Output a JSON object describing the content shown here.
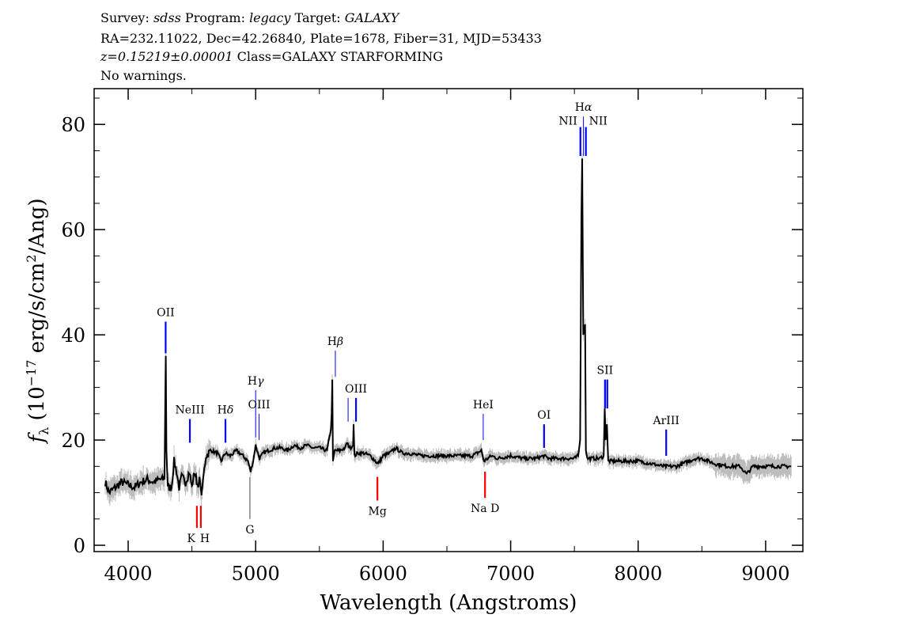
{
  "header": {
    "line1": {
      "survey_label": "Survey:",
      "survey": "sdss",
      "program_label": "Program:",
      "program": "legacy",
      "target_label": "Target:",
      "target": "GALAXY"
    },
    "line2": "RA=232.11022, Dec=42.26840, Plate=1678, Fiber=31, MJD=53433",
    "line3": {
      "redshift": "z=0.15219±0.00001",
      "class": "Class=GALAXY STARFORMING"
    },
    "line4": "No warnings."
  },
  "chart_data": {
    "type": "line",
    "xlabel": "Wavelength (Angstroms)",
    "ylabel": "f_λ (10^-17 erg/s/cm^2/Ang)",
    "xlim": [
      3733,
      9292
    ],
    "ylim": [
      -1.2,
      86.8
    ],
    "xticks": [
      4000,
      5000,
      6000,
      7000,
      8000,
      9000
    ],
    "yticks": [
      0,
      20,
      40,
      60,
      80
    ],
    "grid": false,
    "colors": {
      "flux": "#000000",
      "error_band": "#bdbdbd",
      "emission": "#0000ff",
      "absorption": "#ff0000"
    },
    "flux": [
      [
        3820,
        12
      ],
      [
        3850,
        10
      ],
      [
        3900,
        11
      ],
      [
        3950,
        12
      ],
      [
        4000,
        11.5
      ],
      [
        4050,
        11
      ],
      [
        4100,
        12
      ],
      [
        4150,
        12.5
      ],
      [
        4200,
        12
      ],
      [
        4250,
        12.5
      ],
      [
        4285,
        12.5
      ],
      [
        4292,
        30
      ],
      [
        4295,
        36
      ],
      [
        4300,
        18
      ],
      [
        4310,
        11
      ],
      [
        4340,
        11
      ],
      [
        4360,
        16
      ],
      [
        4380,
        14
      ],
      [
        4400,
        11
      ],
      [
        4420,
        13
      ],
      [
        4450,
        12
      ],
      [
        4480,
        14
      ],
      [
        4500,
        11
      ],
      [
        4520,
        14
      ],
      [
        4550,
        11
      ],
      [
        4560,
        13
      ],
      [
        4575,
        9.5
      ],
      [
        4590,
        13
      ],
      [
        4610,
        17
      ],
      [
        4650,
        18
      ],
      [
        4700,
        17.5
      ],
      [
        4730,
        16
      ],
      [
        4760,
        17.5
      ],
      [
        4800,
        17
      ],
      [
        4850,
        18
      ],
      [
        4900,
        17
      ],
      [
        4940,
        16
      ],
      [
        4960,
        14
      ],
      [
        4980,
        16
      ],
      [
        5000,
        19
      ],
      [
        5030,
        16.5
      ],
      [
        5060,
        17.5
      ],
      [
        5100,
        18
      ],
      [
        5150,
        18.5
      ],
      [
        5200,
        18.5
      ],
      [
        5250,
        18
      ],
      [
        5300,
        19
      ],
      [
        5350,
        18.5
      ],
      [
        5400,
        19
      ],
      [
        5450,
        18.5
      ],
      [
        5500,
        18.5
      ],
      [
        5560,
        18
      ],
      [
        5590,
        22
      ],
      [
        5596,
        25
      ],
      [
        5601,
        31.5
      ],
      [
        5606,
        16
      ],
      [
        5620,
        18
      ],
      [
        5660,
        18
      ],
      [
        5700,
        18.5
      ],
      [
        5713,
        19.5
      ],
      [
        5740,
        18.5
      ],
      [
        5764,
        19
      ],
      [
        5768,
        23
      ],
      [
        5775,
        17
      ],
      [
        5800,
        17.5
      ],
      [
        5850,
        17.5
      ],
      [
        5900,
        17
      ],
      [
        5960,
        15.5
      ],
      [
        6000,
        17
      ],
      [
        6050,
        17.5
      ],
      [
        6100,
        18.5
      ],
      [
        6150,
        17.5
      ],
      [
        6200,
        17.5
      ],
      [
        6300,
        17
      ],
      [
        6400,
        17
      ],
      [
        6500,
        17
      ],
      [
        6600,
        17
      ],
      [
        6700,
        17
      ],
      [
        6770,
        18
      ],
      [
        6790,
        16
      ],
      [
        6850,
        17
      ],
      [
        6900,
        16.5
      ],
      [
        7000,
        17
      ],
      [
        7100,
        16.5
      ],
      [
        7200,
        16.5
      ],
      [
        7258,
        17
      ],
      [
        7300,
        16.5
      ],
      [
        7400,
        16.5
      ],
      [
        7500,
        16.5
      ],
      [
        7530,
        17
      ],
      [
        7545,
        20
      ],
      [
        7555,
        62
      ],
      [
        7561,
        73.5
      ],
      [
        7570,
        40
      ],
      [
        7584,
        42
      ],
      [
        7590,
        18
      ],
      [
        7600,
        16.5
      ],
      [
        7650,
        16.5
      ],
      [
        7700,
        16.5
      ],
      [
        7730,
        17
      ],
      [
        7738,
        26
      ],
      [
        7745,
        20
      ],
      [
        7755,
        23
      ],
      [
        7765,
        16
      ],
      [
        7800,
        16
      ],
      [
        7900,
        16
      ],
      [
        8000,
        16
      ],
      [
        8100,
        15.5
      ],
      [
        8200,
        15
      ],
      [
        8300,
        15
      ],
      [
        8400,
        16
      ],
      [
        8450,
        16.5
      ],
      [
        8500,
        16.5
      ],
      [
        8600,
        15.5
      ],
      [
        8700,
        15
      ],
      [
        8800,
        15
      ],
      [
        8850,
        13.5
      ],
      [
        8900,
        15
      ],
      [
        9000,
        15
      ],
      [
        9100,
        15
      ],
      [
        9200,
        15
      ]
    ],
    "lines": [
      {
        "label": "OII",
        "wavelength": 4294,
        "kind": "emission",
        "from": 36.5,
        "to": 42.5
      },
      {
        "label": "NeIII",
        "wavelength": 4484,
        "kind": "emission",
        "from": 19.5,
        "to": 24
      },
      {
        "label": "Hδ",
        "wavelength": 4763,
        "kind": "emission",
        "from": 19.5,
        "to": 24
      },
      {
        "label": "Hγ",
        "wavelength": 5000,
        "kind": "emission",
        "from": 20.5,
        "to": 29.5,
        "thin": true
      },
      {
        "label": "OIII",
        "wavelength": 5027,
        "kind": "emission",
        "from": 20,
        "to": 25,
        "thin": true
      },
      {
        "label": "Hβ",
        "wavelength": 5625,
        "kind": "emission",
        "from": 32,
        "to": 37,
        "thin": true
      },
      {
        "label": "",
        "wavelength": 5725,
        "kind": "emission",
        "from": 23.5,
        "to": 28,
        "thin": true
      },
      {
        "label": "OIII",
        "wavelength": 5787,
        "kind": "emission",
        "from": 23.5,
        "to": 28
      },
      {
        "label": "HeI",
        "wavelength": 6785,
        "kind": "emission",
        "from": 20,
        "to": 25,
        "thin": true
      },
      {
        "label": "OI",
        "wavelength": 7262,
        "kind": "emission",
        "from": 18.5,
        "to": 23
      },
      {
        "label": "NII",
        "wavelength": 7547,
        "kind": "emission",
        "from": 74,
        "to": 79.5,
        "label_side": "left"
      },
      {
        "label": "Hα",
        "wavelength": 7571,
        "kind": "emission",
        "from": 74,
        "to": 81.5,
        "thin": true
      },
      {
        "label": "NII",
        "wavelength": 7590,
        "kind": "emission",
        "from": 74,
        "to": 79.5,
        "label_side": "right"
      },
      {
        "label": "SII",
        "wavelength": 7740,
        "kind": "emission",
        "from": 26,
        "to": 31.5
      },
      {
        "label": "",
        "wavelength": 7758,
        "kind": "emission",
        "from": 26,
        "to": 31.5
      },
      {
        "label": "ArIII",
        "wavelength": 8220,
        "kind": "emission",
        "from": 17,
        "to": 22
      },
      {
        "label": "K",
        "wavelength": 4539,
        "kind": "absorption",
        "from": 3.3,
        "to": 7.5
      },
      {
        "label": "H",
        "wavelength": 4570,
        "kind": "absorption",
        "from": 3.3,
        "to": 7.5
      },
      {
        "label": "G",
        "wavelength": 4955,
        "kind": "absorption",
        "from": 5,
        "to": 13,
        "thin": true,
        "color": "#444"
      },
      {
        "label": "Mg",
        "wavelength": 5955,
        "kind": "absorption",
        "from": 8.5,
        "to": 13
      },
      {
        "label": "Na D",
        "wavelength": 6799,
        "kind": "absorption",
        "from": 9,
        "to": 14
      }
    ]
  }
}
